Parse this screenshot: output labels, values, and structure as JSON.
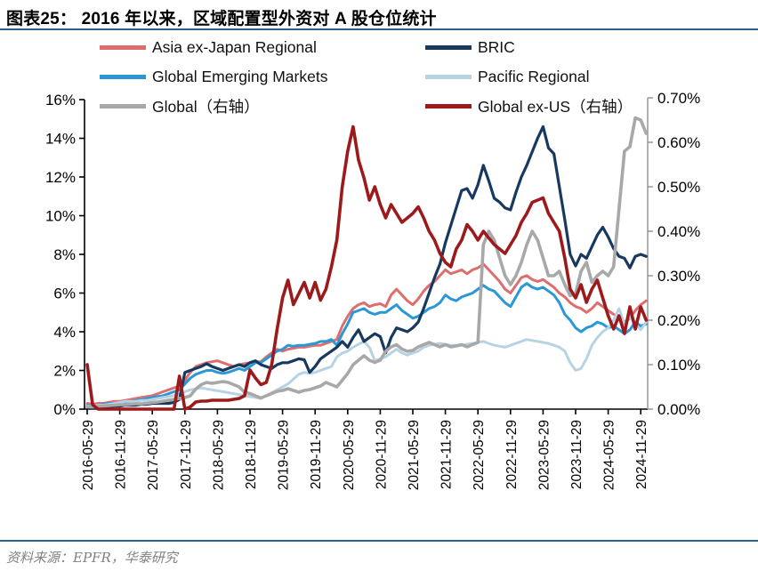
{
  "header": {
    "title": "图表25：  2016 年以来，区域配置型外资对 A 股仓位统计"
  },
  "footer": {
    "source": "资料来源：EPFR，华泰研究"
  },
  "colors": {
    "accent_rule": "#2d5f8b",
    "asia": "#de6e6e",
    "bric": "#17395f",
    "gem": "#2b98d6",
    "pacific": "#b7d3e3",
    "global": "#a8a8a8",
    "global_ex_us": "#9c1a1c",
    "right_axis_line": "#909090"
  },
  "legend": {
    "items": [
      {
        "label": "Asia ex-Japan Regional",
        "color": "#de6e6e"
      },
      {
        "label": "BRIC",
        "color": "#17395f"
      },
      {
        "label": "Global Emerging Markets",
        "color": "#2b98d6"
      },
      {
        "label": "Pacific Regional",
        "color": "#b7d3e3"
      },
      {
        "label": "Global（右轴）",
        "color": "#a8a8a8"
      },
      {
        "label": "Global ex-US（右轴）",
        "color": "#9c1a1c"
      }
    ]
  },
  "chart_data": {
    "type": "line",
    "title": "2016 年以来，区域配置型外资对 A 股仓位统计",
    "x_range": {
      "start": "2016-05",
      "end": "2024-12",
      "freq": "monthly"
    },
    "x_tick_labels": [
      "2016-05-29",
      "2016-11-29",
      "2017-05-29",
      "2017-11-29",
      "2018-05-29",
      "2018-11-29",
      "2019-05-29",
      "2019-11-29",
      "2020-05-29",
      "2020-11-29",
      "2021-05-29",
      "2021-11-29",
      "2022-05-29",
      "2022-11-29",
      "2023-05-29",
      "2023-11-29",
      "2024-05-29",
      "2024-11-29"
    ],
    "left_axis": {
      "min": 0,
      "max": 16,
      "step": 2,
      "tick_labels": [
        "0%",
        "2%",
        "4%",
        "6%",
        "8%",
        "10%",
        "12%",
        "14%",
        "16%"
      ]
    },
    "right_axis": {
      "min": 0.0,
      "max": 0.7,
      "step": 0.1,
      "tick_labels": [
        "0.00%",
        "0.10%",
        "0.20%",
        "0.30%",
        "0.40%",
        "0.50%",
        "0.60%",
        "0.70%"
      ]
    },
    "grid": false,
    "legend_position": "top",
    "series": [
      {
        "name": "Asia ex-Japan Regional",
        "axis": "left",
        "color": "#de6e6e",
        "stroke_width": 3,
        "values": [
          0.3,
          0.25,
          0.3,
          0.3,
          0.35,
          0.4,
          0.4,
          0.45,
          0.5,
          0.55,
          0.6,
          0.65,
          0.7,
          0.8,
          0.9,
          1.0,
          1.1,
          1.2,
          1.5,
          1.9,
          2.2,
          2.3,
          2.4,
          2.45,
          2.5,
          2.4,
          2.3,
          2.2,
          2.3,
          2.35,
          2.4,
          2.45,
          2.45,
          2.7,
          2.9,
          3.1,
          3.0,
          3.1,
          3.15,
          3.2,
          3.2,
          3.25,
          3.3,
          3.3,
          3.4,
          3.5,
          3.6,
          4.3,
          4.8,
          5.2,
          5.4,
          5.5,
          5.3,
          5.4,
          5.45,
          5.3,
          5.9,
          6.2,
          5.9,
          5.6,
          5.4,
          5.7,
          6.1,
          6.4,
          6.6,
          6.9,
          7.2,
          7.0,
          7.1,
          7.2,
          7.0,
          7.2,
          7.3,
          7.5,
          7.2,
          6.9,
          6.6,
          6.2,
          6.0,
          6.4,
          6.8,
          6.9,
          6.7,
          6.6,
          6.7,
          6.5,
          6.3,
          6.0,
          5.8,
          5.5,
          5.3,
          5.2,
          5.0,
          5.2,
          5.5,
          5.3,
          5.1,
          4.9,
          4.8,
          4.5,
          4.7,
          5.1,
          5.4,
          5.6
        ]
      },
      {
        "name": "Global Emerging Markets",
        "axis": "left",
        "color": "#2b98d6",
        "stroke_width": 3,
        "values": [
          0.2,
          0.15,
          0.2,
          0.25,
          0.3,
          0.3,
          0.35,
          0.35,
          0.4,
          0.45,
          0.5,
          0.55,
          0.6,
          0.65,
          0.7,
          0.8,
          0.9,
          1.0,
          1.3,
          1.6,
          1.8,
          1.9,
          2.0,
          2.0,
          1.9,
          1.85,
          1.9,
          2.0,
          2.1,
          2.0,
          2.2,
          2.4,
          2.4,
          2.6,
          2.8,
          3.0,
          3.1,
          3.3,
          3.25,
          3.3,
          3.3,
          3.35,
          3.4,
          3.5,
          3.5,
          3.6,
          3.3,
          3.9,
          4.4,
          5.0,
          5.1,
          5.2,
          5.0,
          4.9,
          5.0,
          5.0,
          5.2,
          5.4,
          5.1,
          4.9,
          4.7,
          4.8,
          5.0,
          5.2,
          5.3,
          5.5,
          5.9,
          5.7,
          5.6,
          5.8,
          5.9,
          6.0,
          6.2,
          6.4,
          6.2,
          6.1,
          5.8,
          5.5,
          5.3,
          5.8,
          6.3,
          6.5,
          6.3,
          6.2,
          6.3,
          6.1,
          5.9,
          5.5,
          4.9,
          4.6,
          4.2,
          4.0,
          4.2,
          4.3,
          4.5,
          4.4,
          4.2,
          4.3,
          4.1,
          3.9,
          4.1,
          4.5,
          4.3,
          4.4
        ]
      },
      {
        "name": "Pacific Regional",
        "axis": "left",
        "color": "#b7d3e3",
        "stroke_width": 3,
        "values": [
          0.15,
          0.15,
          0.2,
          0.2,
          0.25,
          0.3,
          0.35,
          0.4,
          0.4,
          0.4,
          0.45,
          0.45,
          0.5,
          0.55,
          0.6,
          0.65,
          0.7,
          0.8,
          0.9,
          1.0,
          1.05,
          1.1,
          1.05,
          1.0,
          0.95,
          0.9,
          0.85,
          0.8,
          0.75,
          0.7,
          0.65,
          0.6,
          0.55,
          0.7,
          0.85,
          1.0,
          1.15,
          1.3,
          1.55,
          1.8,
          1.9,
          1.85,
          1.9,
          2.0,
          2.1,
          2.2,
          2.7,
          2.9,
          3.0,
          3.2,
          3.35,
          3.5,
          3.2,
          2.5,
          2.6,
          2.7,
          2.9,
          3.1,
          2.9,
          2.8,
          2.9,
          3.0,
          3.2,
          3.3,
          3.35,
          3.4,
          3.35,
          3.3,
          3.3,
          3.3,
          3.35,
          3.4,
          3.45,
          3.5,
          3.4,
          3.3,
          3.25,
          3.2,
          3.3,
          3.4,
          3.5,
          3.6,
          3.55,
          3.5,
          3.45,
          3.4,
          3.3,
          3.2,
          3.0,
          2.4,
          2.0,
          2.1,
          2.6,
          3.3,
          3.7,
          4.0,
          4.2,
          4.6,
          5.2,
          4.4,
          4.8,
          4.4,
          4.1,
          4.5
        ]
      },
      {
        "name": "BRIC",
        "axis": "left",
        "color": "#17395f",
        "stroke_width": 3.2,
        "values": [
          0.1,
          0.05,
          0.05,
          0.1,
          0.1,
          0.15,
          0.15,
          0.2,
          0.2,
          0.2,
          0.25,
          0.25,
          0.3,
          0.3,
          0.3,
          0.3,
          0.35,
          0.5,
          1.9,
          2.0,
          2.1,
          2.2,
          2.35,
          2.2,
          2.1,
          2.0,
          2.1,
          2.2,
          2.3,
          2.2,
          2.4,
          2.5,
          2.3,
          2.2,
          2.1,
          2.3,
          2.4,
          2.4,
          2.5,
          2.6,
          2.55,
          1.9,
          2.2,
          2.6,
          2.8,
          3.0,
          3.2,
          3.5,
          3.2,
          3.7,
          4.1,
          3.5,
          3.7,
          3.9,
          3.75,
          2.9,
          3.7,
          4.2,
          4.1,
          4.0,
          4.2,
          4.5,
          5.2,
          6.0,
          6.8,
          7.5,
          8.6,
          9.5,
          10.4,
          11.3,
          11.4,
          10.9,
          11.6,
          12.6,
          11.8,
          10.9,
          10.7,
          10.4,
          10.3,
          11.2,
          12.0,
          12.6,
          13.3,
          14.0,
          14.6,
          13.5,
          13.2,
          11.5,
          9.8,
          8.0,
          7.4,
          8.0,
          7.8,
          8.4,
          9.0,
          9.4,
          8.9,
          8.3,
          7.9,
          7.8,
          7.3,
          7.9,
          8.0,
          7.9
        ]
      },
      {
        "name": "Global（右轴）",
        "axis": "right",
        "color": "#a8a8a8",
        "stroke_width": 3.6,
        "values": [
          0.005,
          0.005,
          0.006,
          0.007,
          0.008,
          0.009,
          0.01,
          0.01,
          0.011,
          0.012,
          0.012,
          0.013,
          0.015,
          0.016,
          0.018,
          0.02,
          0.022,
          0.024,
          0.026,
          0.03,
          0.045,
          0.055,
          0.06,
          0.058,
          0.06,
          0.062,
          0.06,
          0.055,
          0.05,
          0.038,
          0.035,
          0.03,
          0.025,
          0.03,
          0.035,
          0.04,
          0.042,
          0.046,
          0.042,
          0.038,
          0.042,
          0.044,
          0.048,
          0.052,
          0.06,
          0.055,
          0.05,
          0.065,
          0.08,
          0.1,
          0.11,
          0.12,
          0.11,
          0.105,
          0.11,
          0.13,
          0.14,
          0.145,
          0.135,
          0.13,
          0.132,
          0.14,
          0.145,
          0.15,
          0.145,
          0.14,
          0.145,
          0.14,
          0.142,
          0.145,
          0.14,
          0.145,
          0.15,
          0.37,
          0.4,
          0.38,
          0.34,
          0.3,
          0.28,
          0.3,
          0.33,
          0.37,
          0.4,
          0.38,
          0.34,
          0.3,
          0.3,
          0.31,
          0.28,
          0.255,
          0.26,
          0.31,
          0.33,
          0.285,
          0.3,
          0.31,
          0.3,
          0.32,
          0.45,
          0.58,
          0.59,
          0.655,
          0.65,
          0.62
        ]
      },
      {
        "name": "Global ex-US（右轴）",
        "axis": "right",
        "color": "#9c1a1c",
        "stroke_width": 3.6,
        "values": [
          0.1,
          0.01,
          0,
          0,
          0,
          0,
          0,
          0,
          0,
          0,
          0,
          0,
          0,
          0,
          0,
          0,
          0,
          0.074,
          0,
          0.005,
          0.016,
          0.018,
          0.018,
          0.02,
          0.02,
          0.02,
          0.02,
          0.022,
          0.024,
          0.03,
          0.088,
          0.07,
          0.055,
          0.06,
          0.1,
          0.18,
          0.25,
          0.29,
          0.235,
          0.26,
          0.285,
          0.25,
          0.285,
          0.245,
          0.27,
          0.32,
          0.38,
          0.5,
          0.58,
          0.635,
          0.56,
          0.52,
          0.47,
          0.5,
          0.46,
          0.43,
          0.46,
          0.44,
          0.42,
          0.43,
          0.44,
          0.455,
          0.43,
          0.4,
          0.38,
          0.35,
          0.33,
          0.32,
          0.36,
          0.38,
          0.415,
          0.4,
          0.38,
          0.4,
          0.385,
          0.37,
          0.36,
          0.35,
          0.37,
          0.39,
          0.42,
          0.44,
          0.465,
          0.47,
          0.475,
          0.44,
          0.42,
          0.4,
          0.34,
          0.27,
          0.25,
          0.28,
          0.24,
          0.27,
          0.29,
          0.25,
          0.21,
          0.18,
          0.21,
          0.17,
          0.23,
          0.18,
          0.23,
          0.2
        ]
      }
    ]
  }
}
